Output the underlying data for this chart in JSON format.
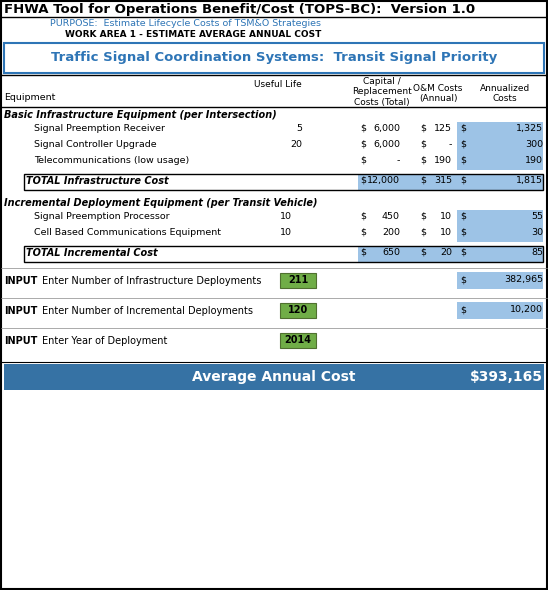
{
  "title": "FHWA Tool for Operations Benefit/Cost (TOPS-BC):  Version 1.0",
  "purpose": "PURPOSE:  Estimate Lifecycle Costs of TSM&O Strategies",
  "work_area": "WORK AREA 1 - ESTIMATE AVERAGE ANNUAL COST",
  "subtitle": "Traffic Signal Coordination Systems:  Transit Signal Priority",
  "section1_title": "Basic Infrastructure Equipment (per Intersection)",
  "section1_items": [
    {
      "name": "Signal Preemption Receiver",
      "life": "5",
      "capital": "6,000",
      "om": "125",
      "annualized": "1,325"
    },
    {
      "name": "Signal Controller Upgrade",
      "life": "20",
      "capital": "6,000",
      "om": "-",
      "annualized": "300"
    },
    {
      "name": "Telecommunications (low usage)",
      "life": "",
      "capital": "-",
      "om": "190",
      "annualized": "190"
    }
  ],
  "section1_total": {
    "name": "TOTAL Infrastructure Cost",
    "capital": "12,000",
    "om": "315",
    "annualized": "1,815"
  },
  "section2_title": "Incremental Deployment Equipment (per Transit Vehicle)",
  "section2_items": [
    {
      "name": "Signal Preemption Processor",
      "life": "10",
      "capital": "450",
      "om": "10",
      "annualized": "55"
    },
    {
      "name": "Cell Based Communications Equipment",
      "life": "10",
      "capital": "200",
      "om": "10",
      "annualized": "30"
    }
  ],
  "section2_total": {
    "name": "TOTAL Incremental Cost",
    "capital": "650",
    "om": "20",
    "annualized": "85"
  },
  "inputs": [
    {
      "label": "INPUT",
      "desc": "Enter Number of Infrastructure Deployments",
      "value": "211",
      "result": "382,965"
    },
    {
      "label": "INPUT",
      "desc": "Enter Number of Incremental Deployments",
      "value": "120",
      "result": "10,200"
    },
    {
      "label": "INPUT",
      "desc": "Enter Year of Deployment",
      "value": "2014",
      "result": ""
    }
  ],
  "avg_label": "Average Annual Cost",
  "avg_value": "$393,165",
  "color_header_bg": "#3672A4",
  "color_header_text": "#FFFFFF",
  "color_blue_cell": "#9DC3E6",
  "color_green_cell": "#70AD47",
  "color_blue_text": "#2E75B6",
  "color_border": "#000000"
}
